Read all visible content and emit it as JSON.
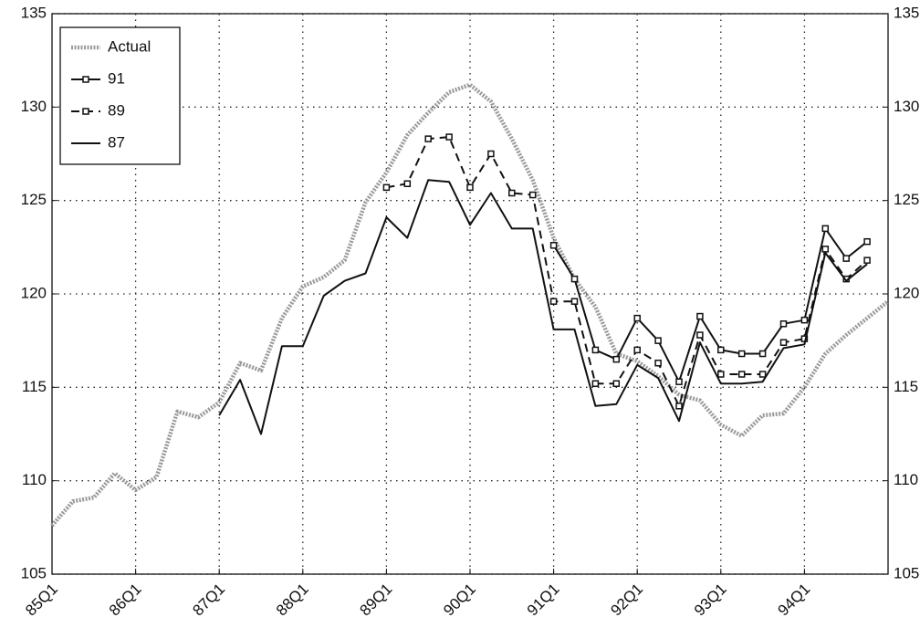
{
  "chart_data": {
    "type": "line",
    "categories": [
      "85Q1",
      null,
      null,
      null,
      "86Q1",
      null,
      null,
      null,
      "87Q1",
      null,
      null,
      null,
      "88Q1",
      null,
      null,
      null,
      "89Q1",
      null,
      null,
      null,
      "90Q1",
      null,
      null,
      null,
      "91Q1",
      null,
      null,
      null,
      "92Q1",
      null,
      null,
      null,
      "93Q1",
      null,
      null,
      null,
      "94Q1",
      null,
      null,
      null,
      null
    ],
    "series": [
      {
        "name": "Actual",
        "color": "#9a9a9a",
        "line_style": "hatched",
        "values": [
          107.6,
          108.9,
          109.1,
          110.4,
          109.5,
          110.2,
          113.7,
          113.4,
          114.2,
          116.3,
          115.9,
          118.7,
          120.4,
          120.9,
          121.8,
          124.9,
          126.5,
          128.5,
          129.7,
          130.8,
          131.2,
          130.3,
          128.3,
          126.1,
          123.0,
          120.8,
          119.3,
          116.8,
          116.4,
          115.6,
          114.6,
          114.3,
          113.0,
          112.4,
          113.5,
          113.6,
          115.0,
          116.8,
          117.8,
          118.7,
          119.6
        ]
      },
      {
        "name": "91",
        "color": "#111111",
        "line_style": "solid",
        "marker": "square",
        "values": [
          null,
          null,
          null,
          null,
          null,
          null,
          null,
          null,
          null,
          null,
          null,
          null,
          null,
          null,
          null,
          null,
          null,
          null,
          null,
          null,
          null,
          null,
          null,
          null,
          122.6,
          120.8,
          117.0,
          116.5,
          118.7,
          117.5,
          115.3,
          118.8,
          117.0,
          116.8,
          116.8,
          118.4,
          118.6,
          123.5,
          121.9,
          122.8,
          null
        ]
      },
      {
        "name": "89",
        "color": "#111111",
        "line_style": "dashed",
        "marker": "square",
        "values": [
          null,
          null,
          null,
          null,
          null,
          null,
          null,
          null,
          null,
          null,
          null,
          null,
          null,
          null,
          null,
          null,
          125.7,
          125.9,
          128.3,
          128.4,
          125.7,
          127.5,
          125.4,
          125.3,
          119.6,
          119.6,
          115.2,
          115.2,
          117.0,
          116.3,
          114.0,
          117.8,
          115.7,
          115.7,
          115.7,
          117.4,
          117.6,
          122.4,
          120.8,
          121.8,
          null
        ]
      },
      {
        "name": "87",
        "color": "#111111",
        "line_style": "solid",
        "values": [
          null,
          null,
          null,
          null,
          null,
          null,
          null,
          null,
          113.5,
          115.4,
          112.5,
          117.2,
          117.2,
          119.9,
          120.7,
          121.1,
          124.1,
          123.0,
          126.1,
          126.0,
          123.7,
          125.4,
          123.5,
          123.5,
          118.1,
          118.1,
          114.0,
          114.1,
          116.2,
          115.5,
          113.2,
          117.4,
          115.2,
          115.2,
          115.3,
          117.1,
          117.3,
          122.2,
          120.7,
          121.6,
          null
        ]
      }
    ],
    "ylim": [
      105,
      135
    ],
    "yticks": [
      105,
      110,
      115,
      120,
      125,
      130,
      135
    ],
    "grid": true,
    "legend": "upper left"
  }
}
